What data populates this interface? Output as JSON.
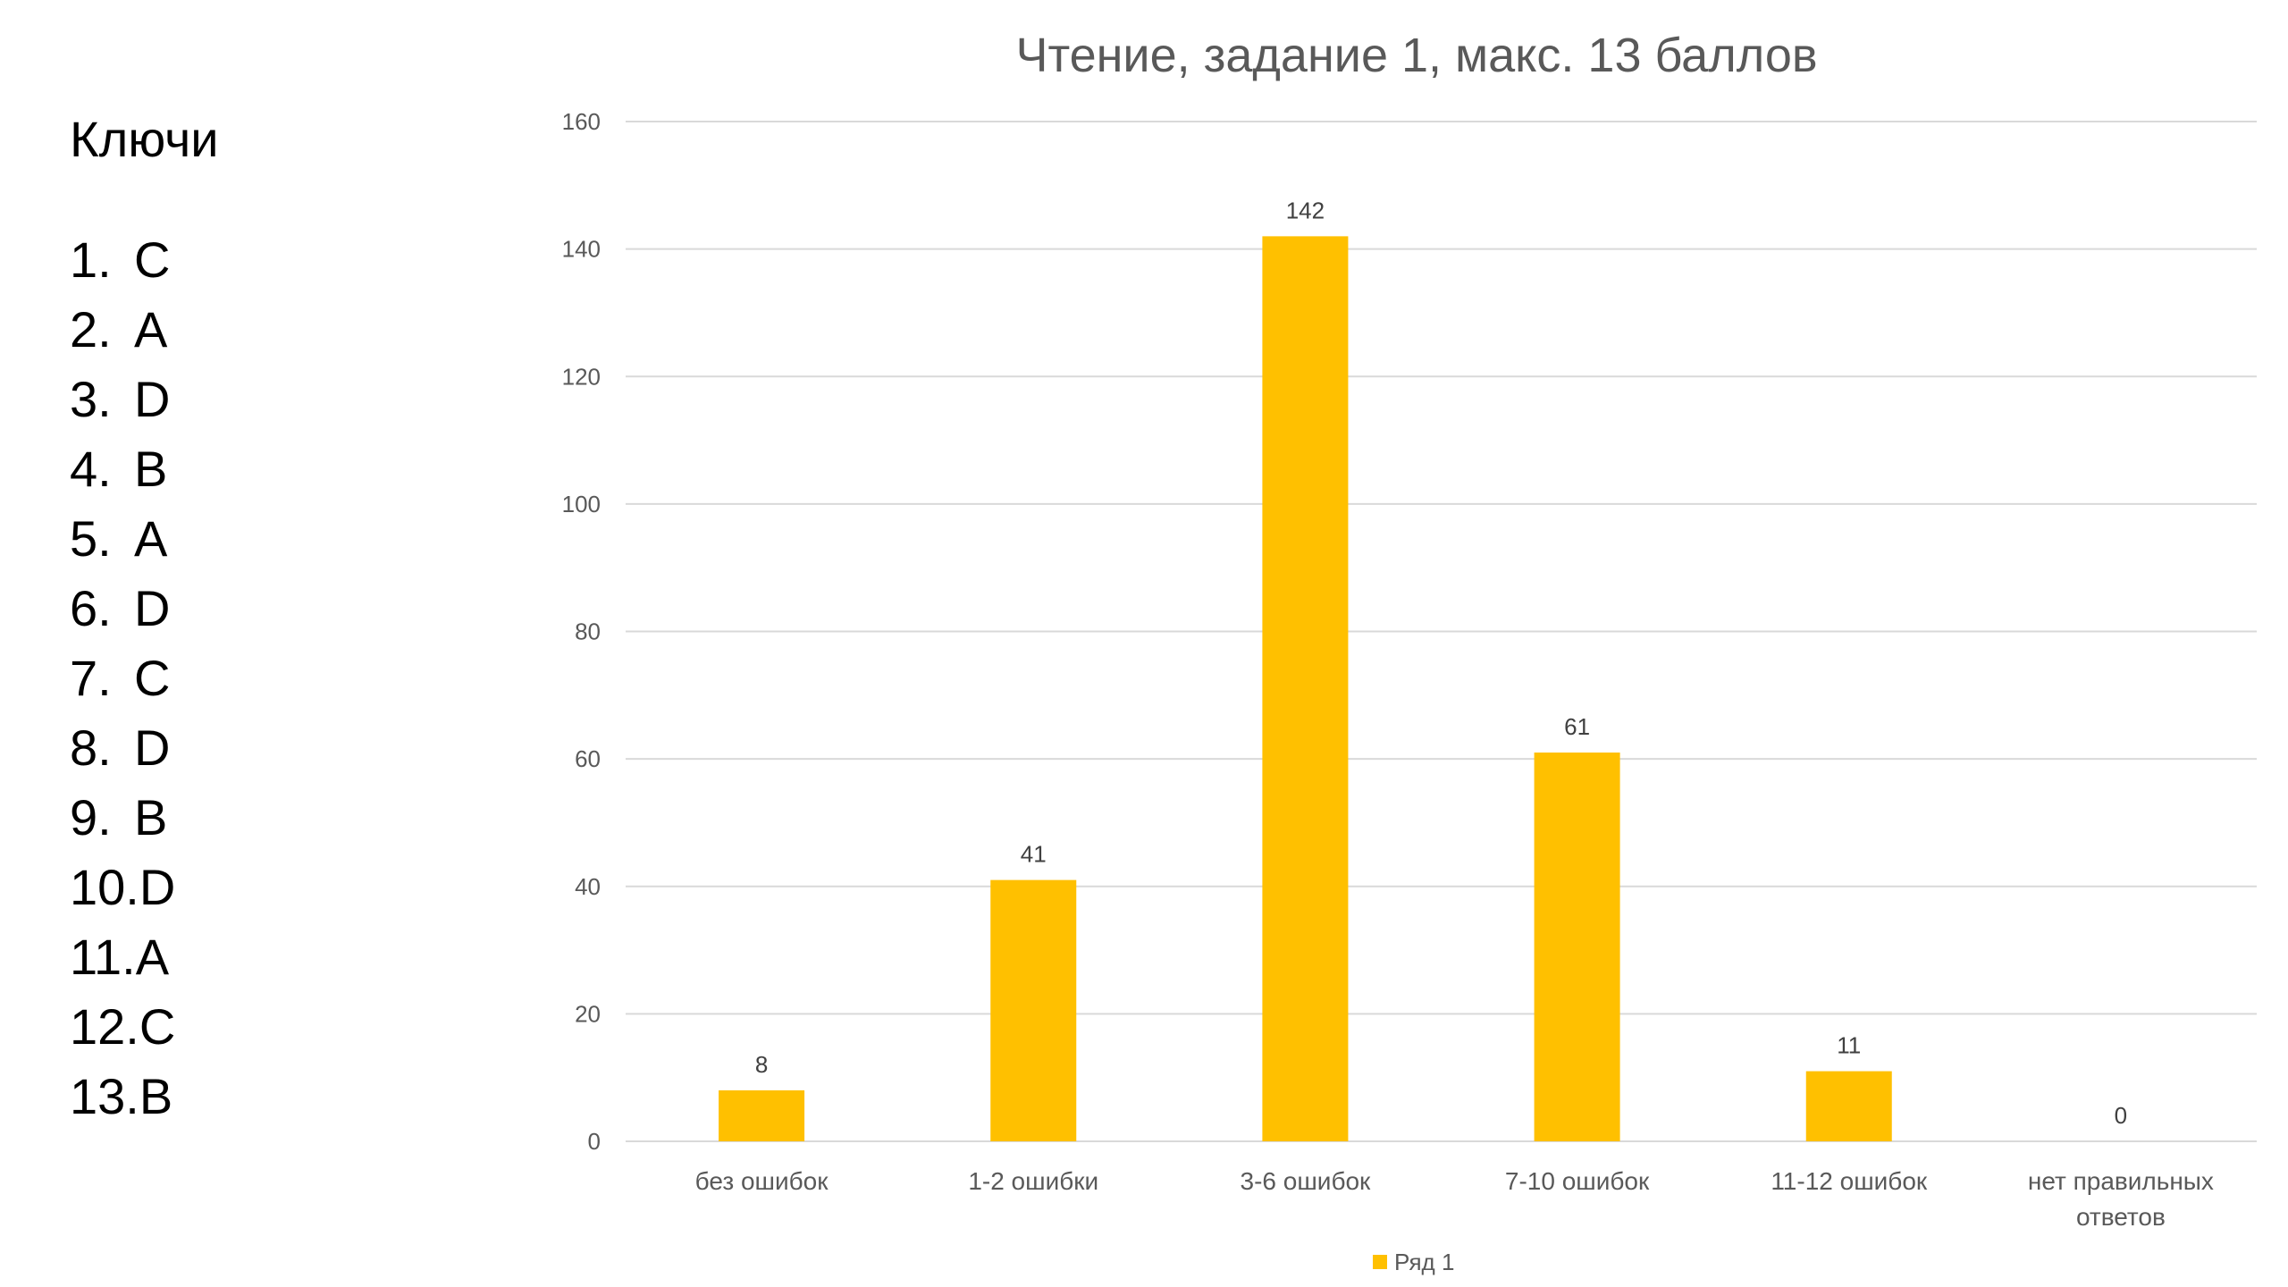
{
  "keys": {
    "title": "Ключи",
    "items": [
      {
        "num": "1.",
        "answer": "C"
      },
      {
        "num": "2.",
        "answer": "A"
      },
      {
        "num": "3.",
        "answer": "D"
      },
      {
        "num": "4.",
        "answer": "B"
      },
      {
        "num": "5.",
        "answer": "A"
      },
      {
        "num": "6.",
        "answer": "D"
      },
      {
        "num": "7.",
        "answer": "C"
      },
      {
        "num": "8.",
        "answer": "D"
      },
      {
        "num": "9.",
        "answer": "B"
      },
      {
        "num": "10.",
        "answer": "D"
      },
      {
        "num": "11.",
        "answer": "A"
      },
      {
        "num": "12.",
        "answer": "C"
      },
      {
        "num": "13.",
        "answer": "B"
      }
    ]
  },
  "chart_data": {
    "type": "bar",
    "title": "Чтение, задание 1, макс. 13 баллов",
    "categories": [
      "без ошибок",
      "1-2 ошибки",
      "3-6 ошибок",
      "7-10 ошибок",
      "11-12 ошибок",
      "нет правильных ответов"
    ],
    "series": [
      {
        "name": "Ряд 1",
        "values": [
          8,
          41,
          142,
          61,
          11,
          0
        ],
        "color": "#FFC000"
      }
    ],
    "ylim": [
      0,
      160
    ],
    "yticks": [
      0,
      20,
      40,
      60,
      80,
      100,
      120,
      140,
      160
    ],
    "grid": true,
    "legend": "bottom",
    "data_labels": true,
    "gridline_color": "#D9D9D9",
    "text_color": "#595959"
  }
}
